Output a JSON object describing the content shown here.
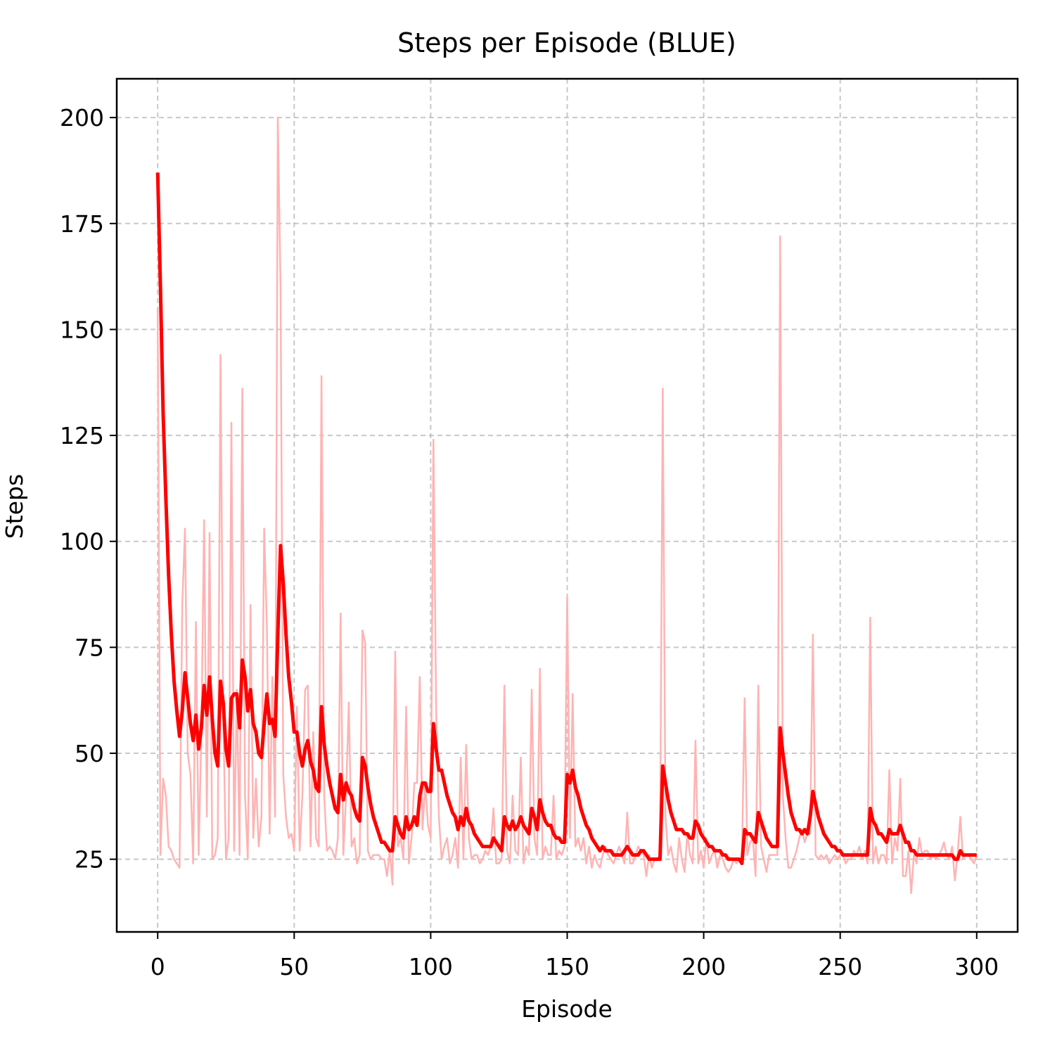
{
  "chart_data": {
    "type": "line",
    "title": "Steps per Episode (BLUE)",
    "xlabel": "Episode",
    "ylabel": "Steps",
    "x": [
      0,
      1,
      2,
      3,
      4,
      5,
      6,
      7,
      8,
      9,
      10,
      11,
      12,
      13,
      14,
      15,
      16,
      17,
      18,
      19,
      20,
      21,
      22,
      23,
      24,
      25,
      26,
      27,
      28,
      29,
      30,
      31,
      32,
      33,
      34,
      35,
      36,
      37,
      38,
      39,
      40,
      41,
      42,
      43,
      44,
      45,
      46,
      47,
      48,
      49,
      50,
      51,
      52,
      53,
      54,
      55,
      56,
      57,
      58,
      59,
      60,
      61,
      62,
      63,
      64,
      65,
      66,
      67,
      68,
      69,
      70,
      71,
      72,
      73,
      74,
      75,
      76,
      77,
      78,
      79,
      80,
      81,
      82,
      83,
      84,
      85,
      86,
      87,
      88,
      89,
      90,
      91,
      92,
      93,
      94,
      95,
      96,
      97,
      98,
      99,
      100,
      101,
      102,
      103,
      104,
      105,
      106,
      107,
      108,
      109,
      110,
      111,
      112,
      113,
      114,
      115,
      116,
      117,
      118,
      119,
      120,
      121,
      122,
      123,
      124,
      125,
      126,
      127,
      128,
      129,
      130,
      131,
      132,
      133,
      134,
      135,
      136,
      137,
      138,
      139,
      140,
      141,
      142,
      143,
      144,
      145,
      146,
      147,
      148,
      149,
      150,
      151,
      152,
      153,
      154,
      155,
      156,
      157,
      158,
      159,
      160,
      161,
      162,
      163,
      164,
      165,
      166,
      167,
      168,
      169,
      170,
      171,
      172,
      173,
      174,
      175,
      176,
      177,
      178,
      179,
      180,
      181,
      182,
      183,
      184,
      185,
      186,
      187,
      188,
      189,
      190,
      191,
      192,
      193,
      194,
      195,
      196,
      197,
      198,
      199,
      200,
      201,
      202,
      203,
      204,
      205,
      206,
      207,
      208,
      209,
      210,
      211,
      212,
      213,
      214,
      215,
      216,
      217,
      218,
      219,
      220,
      221,
      222,
      223,
      224,
      225,
      226,
      227,
      228,
      229,
      230,
      231,
      232,
      233,
      234,
      235,
      236,
      237,
      238,
      239,
      240,
      241,
      242,
      243,
      244,
      245,
      246,
      247,
      248,
      249,
      250,
      251,
      252,
      253,
      254,
      255,
      256,
      257,
      258,
      259,
      260,
      261,
      262,
      263,
      264,
      265,
      266,
      267,
      268,
      269,
      270,
      271,
      272,
      273,
      274,
      275,
      276,
      277,
      278,
      279,
      280,
      281,
      282,
      283,
      284,
      285,
      286,
      287,
      288,
      289,
      290,
      291,
      292,
      293,
      294,
      295,
      296,
      297,
      298,
      299,
      300
    ],
    "series": [
      {
        "color": "#ffb3b3",
        "width": 2.5,
        "values": [
          155,
          26,
          44,
          40,
          28,
          27,
          25,
          24,
          23,
          85,
          103,
          50,
          45,
          24,
          81,
          26,
          55,
          105,
          35,
          102,
          25,
          26,
          30,
          144,
          60,
          25,
          30,
          128,
          27,
          65,
          26,
          136,
          40,
          25,
          85,
          30,
          44,
          28,
          35,
          103,
          80,
          31,
          68,
          35,
          200,
          160,
          45,
          35,
          30,
          31,
          27,
          61,
          27,
          40,
          65,
          66,
          28,
          55,
          30,
          28,
          139,
          40,
          27,
          28,
          27,
          25,
          30,
          83,
          26,
          40,
          62,
          28,
          30,
          24,
          26,
          79,
          76,
          27,
          25,
          26,
          26,
          26,
          25,
          25,
          21,
          27,
          19,
          74,
          28,
          30,
          25,
          61,
          24,
          30,
          43,
          43,
          68,
          32,
          43,
          33,
          30,
          124,
          60,
          35,
          25,
          28,
          30,
          24,
          26,
          30,
          23,
          49,
          25,
          52,
          30,
          25,
          26,
          26,
          24,
          25,
          27,
          26,
          28,
          37,
          24,
          24,
          25,
          66,
          27,
          24,
          40,
          27,
          26,
          49,
          24,
          28,
          26,
          65,
          30,
          26,
          70,
          25,
          28,
          26,
          26,
          40,
          25,
          27,
          26,
          28,
          87,
          30,
          64,
          28,
          30,
          27,
          30,
          24,
          28,
          23,
          26,
          24,
          23,
          26,
          28,
          26,
          25,
          24,
          26,
          28,
          26,
          24,
          36,
          24,
          24,
          26,
          28,
          27,
          26,
          21,
          26,
          23,
          25,
          25,
          26,
          136,
          35,
          26,
          28,
          24,
          22,
          30,
          25,
          22,
          31,
          26,
          24,
          53,
          24,
          27,
          23,
          30,
          24,
          26,
          27,
          23,
          26,
          25,
          23,
          22,
          23,
          25,
          24,
          25,
          25,
          63,
          26,
          29,
          30,
          21,
          66,
          28,
          25,
          22,
          26,
          26,
          26,
          26,
          172,
          40,
          30,
          23,
          23,
          25,
          27,
          30,
          32,
          29,
          31,
          31,
          78,
          26,
          25,
          26,
          25,
          26,
          24,
          25,
          26,
          25,
          26,
          26,
          24,
          25,
          25,
          27,
          26,
          28,
          25,
          27,
          24,
          82,
          24,
          28,
          24,
          26,
          26,
          24,
          46,
          24,
          30,
          27,
          44,
          21,
          21,
          27,
          17,
          26,
          24,
          30,
          26,
          27,
          27,
          25,
          26,
          25,
          26,
          27,
          29,
          26,
          25,
          28,
          20,
          26,
          35,
          25,
          26,
          26,
          25,
          24,
          26
        ]
      },
      {
        "color": "#ff0000",
        "width": 5,
        "values": [
          187,
          160,
          130,
          110,
          92,
          78,
          67,
          60,
          54,
          60,
          69,
          63,
          57,
          53,
          59,
          51,
          56,
          66,
          59,
          68,
          58,
          50,
          47,
          67,
          62,
          51,
          47,
          63,
          64,
          64,
          56,
          72,
          68,
          60,
          65,
          57,
          55,
          50,
          49,
          57,
          64,
          57,
          58,
          54,
          78,
          99,
          90,
          78,
          68,
          62,
          55,
          55,
          50,
          47,
          51,
          53,
          48,
          46,
          42,
          41,
          61,
          52,
          47,
          43,
          40,
          37,
          36,
          45,
          39,
          43,
          41,
          40,
          37,
          35,
          34,
          49,
          47,
          42,
          38,
          35,
          33,
          31,
          29,
          29,
          28,
          27,
          27,
          35,
          33,
          31,
          30,
          35,
          32,
          33,
          35,
          33,
          40,
          43,
          43,
          41,
          41,
          57,
          51,
          46,
          46,
          43,
          40,
          38,
          36,
          35,
          32,
          35,
          33,
          37,
          34,
          33,
          31,
          30,
          29,
          28,
          28,
          28,
          28,
          30,
          29,
          28,
          27,
          35,
          33,
          32,
          34,
          32,
          33,
          35,
          33,
          32,
          31,
          37,
          35,
          32,
          39,
          36,
          34,
          33,
          33,
          31,
          30,
          30,
          29,
          29,
          45,
          43,
          46,
          42,
          40,
          37,
          35,
          33,
          32,
          30,
          29,
          28,
          27,
          28,
          27,
          27,
          27,
          26,
          26,
          26,
          26,
          27,
          28,
          27,
          26,
          26,
          26,
          27,
          27,
          26,
          25,
          25,
          25,
          25,
          25,
          47,
          43,
          39,
          36,
          34,
          32,
          32,
          32,
          31,
          31,
          30,
          30,
          34,
          33,
          31,
          30,
          29,
          28,
          28,
          27,
          27,
          27,
          26,
          26,
          25,
          25,
          25,
          25,
          25,
          24,
          32,
          31,
          31,
          30,
          29,
          36,
          34,
          32,
          30,
          29,
          28,
          28,
          28,
          56,
          50,
          45,
          40,
          36,
          34,
          32,
          32,
          31,
          32,
          31,
          35,
          41,
          38,
          35,
          33,
          31,
          30,
          29,
          28,
          28,
          27,
          27,
          26,
          26,
          26,
          26,
          26,
          26,
          26,
          26,
          26,
          26,
          37,
          34,
          33,
          31,
          31,
          30,
          29,
          32,
          31,
          31,
          31,
          33,
          31,
          29,
          29,
          27,
          27,
          26,
          26,
          26,
          26,
          26,
          26,
          26,
          26,
          26,
          26,
          26,
          26,
          26,
          26,
          25,
          25,
          27,
          26,
          26,
          26,
          26,
          26,
          26
        ]
      }
    ],
    "xlim": [
      -15,
      315
    ],
    "ylim": [
      7.85,
      209.15
    ],
    "xticks": [
      0,
      50,
      100,
      150,
      200,
      250,
      300
    ],
    "yticks": [
      25,
      50,
      75,
      100,
      125,
      150,
      175,
      200
    ],
    "grid": true
  }
}
